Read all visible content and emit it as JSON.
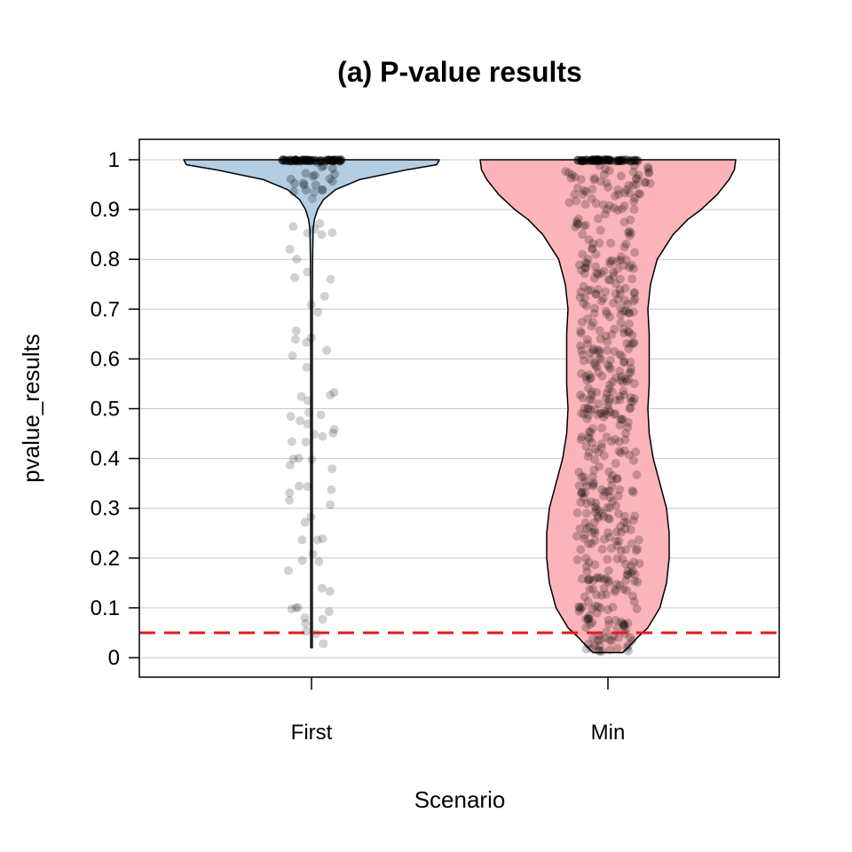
{
  "chart_data": {
    "type": "violin",
    "title": "(a) P-value results",
    "xlabel": "Scenario",
    "ylabel": "pvalue_results",
    "categories": [
      "First",
      "Min"
    ],
    "ylim": [
      0,
      1
    ],
    "yticks": [
      "0",
      "0.1",
      "0.2",
      "0.3",
      "0.4",
      "0.5",
      "0.6",
      "0.7",
      "0.8",
      "0.9",
      "1"
    ],
    "grid": true,
    "reference_line": {
      "y": 0.05,
      "style": "dashed",
      "color": "#e31a1c"
    },
    "colors": {
      "First": "#b3cde3",
      "Min": "#fbb4b9",
      "points": "#000000"
    },
    "violins": [
      {
        "name": "First",
        "range": [
          0.02,
          1.0
        ],
        "density": [
          [
            0.02,
            0.006
          ],
          [
            0.1,
            0.006
          ],
          [
            0.2,
            0.006
          ],
          [
            0.3,
            0.006
          ],
          [
            0.4,
            0.006
          ],
          [
            0.5,
            0.006
          ],
          [
            0.6,
            0.006
          ],
          [
            0.7,
            0.006
          ],
          [
            0.8,
            0.008
          ],
          [
            0.86,
            0.012
          ],
          [
            0.88,
            0.022
          ],
          [
            0.9,
            0.045
          ],
          [
            0.92,
            0.09
          ],
          [
            0.94,
            0.18
          ],
          [
            0.96,
            0.36
          ],
          [
            0.98,
            0.72
          ],
          [
            0.99,
            0.94
          ],
          [
            1.0,
            0.96
          ]
        ],
        "points_summary": {
          "dense_cluster_at": 1.0,
          "scattered_range": [
            0.02,
            0.96
          ]
        }
      },
      {
        "name": "Min",
        "range": [
          0.01,
          1.0
        ],
        "density": [
          [
            0.01,
            0.11
          ],
          [
            0.02,
            0.15
          ],
          [
            0.04,
            0.22
          ],
          [
            0.06,
            0.3
          ],
          [
            0.1,
            0.39
          ],
          [
            0.15,
            0.44
          ],
          [
            0.2,
            0.46
          ],
          [
            0.25,
            0.46
          ],
          [
            0.3,
            0.44
          ],
          [
            0.35,
            0.39
          ],
          [
            0.4,
            0.34
          ],
          [
            0.45,
            0.31
          ],
          [
            0.5,
            0.3
          ],
          [
            0.55,
            0.31
          ],
          [
            0.6,
            0.31
          ],
          [
            0.65,
            0.31
          ],
          [
            0.7,
            0.3
          ],
          [
            0.75,
            0.32
          ],
          [
            0.8,
            0.37
          ],
          [
            0.85,
            0.49
          ],
          [
            0.88,
            0.6
          ],
          [
            0.9,
            0.7
          ],
          [
            0.93,
            0.82
          ],
          [
            0.96,
            0.91
          ],
          [
            0.98,
            0.95
          ],
          [
            1.0,
            0.96
          ]
        ],
        "points_summary": {
          "dense_cluster_at": 1.0,
          "scattered_range": [
            0.01,
            0.99
          ]
        }
      }
    ]
  }
}
